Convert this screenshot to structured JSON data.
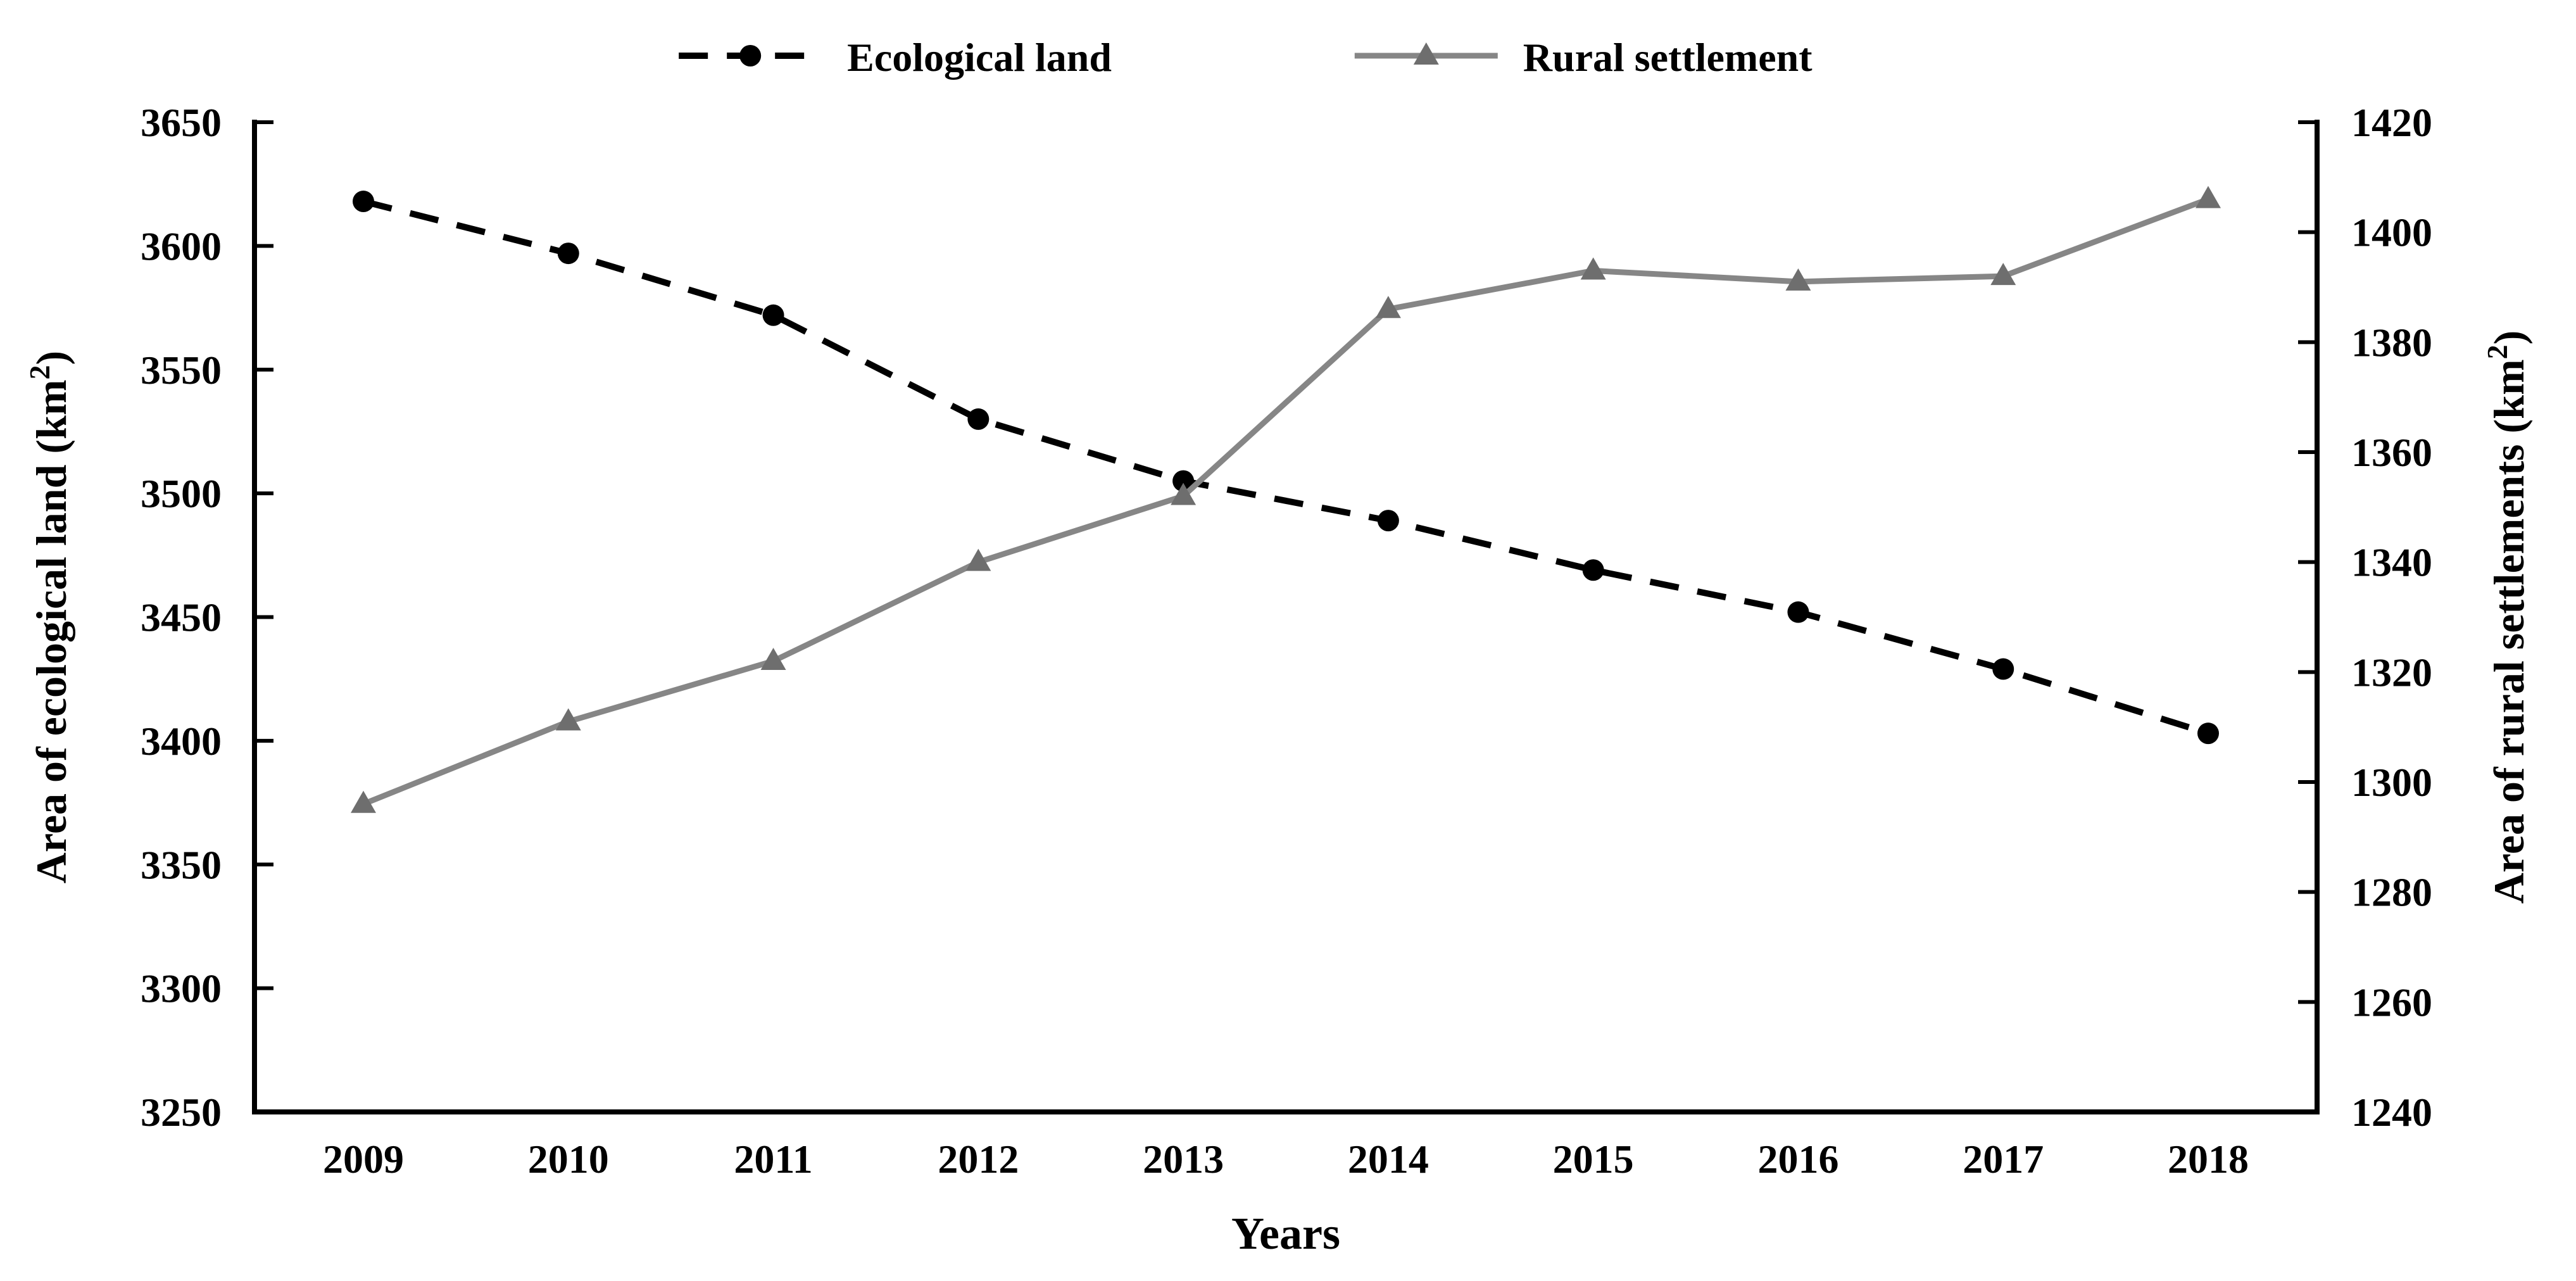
{
  "chart_data": {
    "type": "line",
    "title": "",
    "x_label": "Years",
    "categories": [
      "2009",
      "2010",
      "2011",
      "2012",
      "2013",
      "2014",
      "2015",
      "2016",
      "2017",
      "2018"
    ],
    "series": [
      {
        "name": "Ecological land",
        "axis": "left",
        "color": "#000000",
        "marker": "circle",
        "marker_color": "#000000",
        "line_style": "dashed",
        "values": [
          3618,
          3597,
          3572,
          3530,
          3505,
          3489,
          3469,
          3452,
          3429,
          3403
        ]
      },
      {
        "name": "Rural settlement",
        "axis": "right",
        "color": "#868686",
        "marker": "triangle",
        "marker_color": "#6e6e6e",
        "line_style": "solid",
        "values": [
          1296,
          1311,
          1322,
          1340,
          1352,
          1386,
          1393,
          1391,
          1392,
          1406
        ]
      }
    ],
    "left_axis": {
      "label": "Area of ecological land (km²)",
      "min": 3250,
      "max": 3650,
      "step": 50,
      "ticks": [
        "3650",
        "3600",
        "3550",
        "3500",
        "3450",
        "3400",
        "3350",
        "3300",
        "3250"
      ]
    },
    "right_axis": {
      "label": "Area of rural settlements (km²)",
      "min": 1240,
      "max": 1420,
      "step": 20,
      "ticks": [
        "1420",
        "1400",
        "1380",
        "1360",
        "1340",
        "1320",
        "1300",
        "1280",
        "1260",
        "1240"
      ]
    },
    "legend_position": "top",
    "grid": false,
    "background": "#ffffff",
    "text_color": "#000000",
    "axis_color": "#000000"
  }
}
